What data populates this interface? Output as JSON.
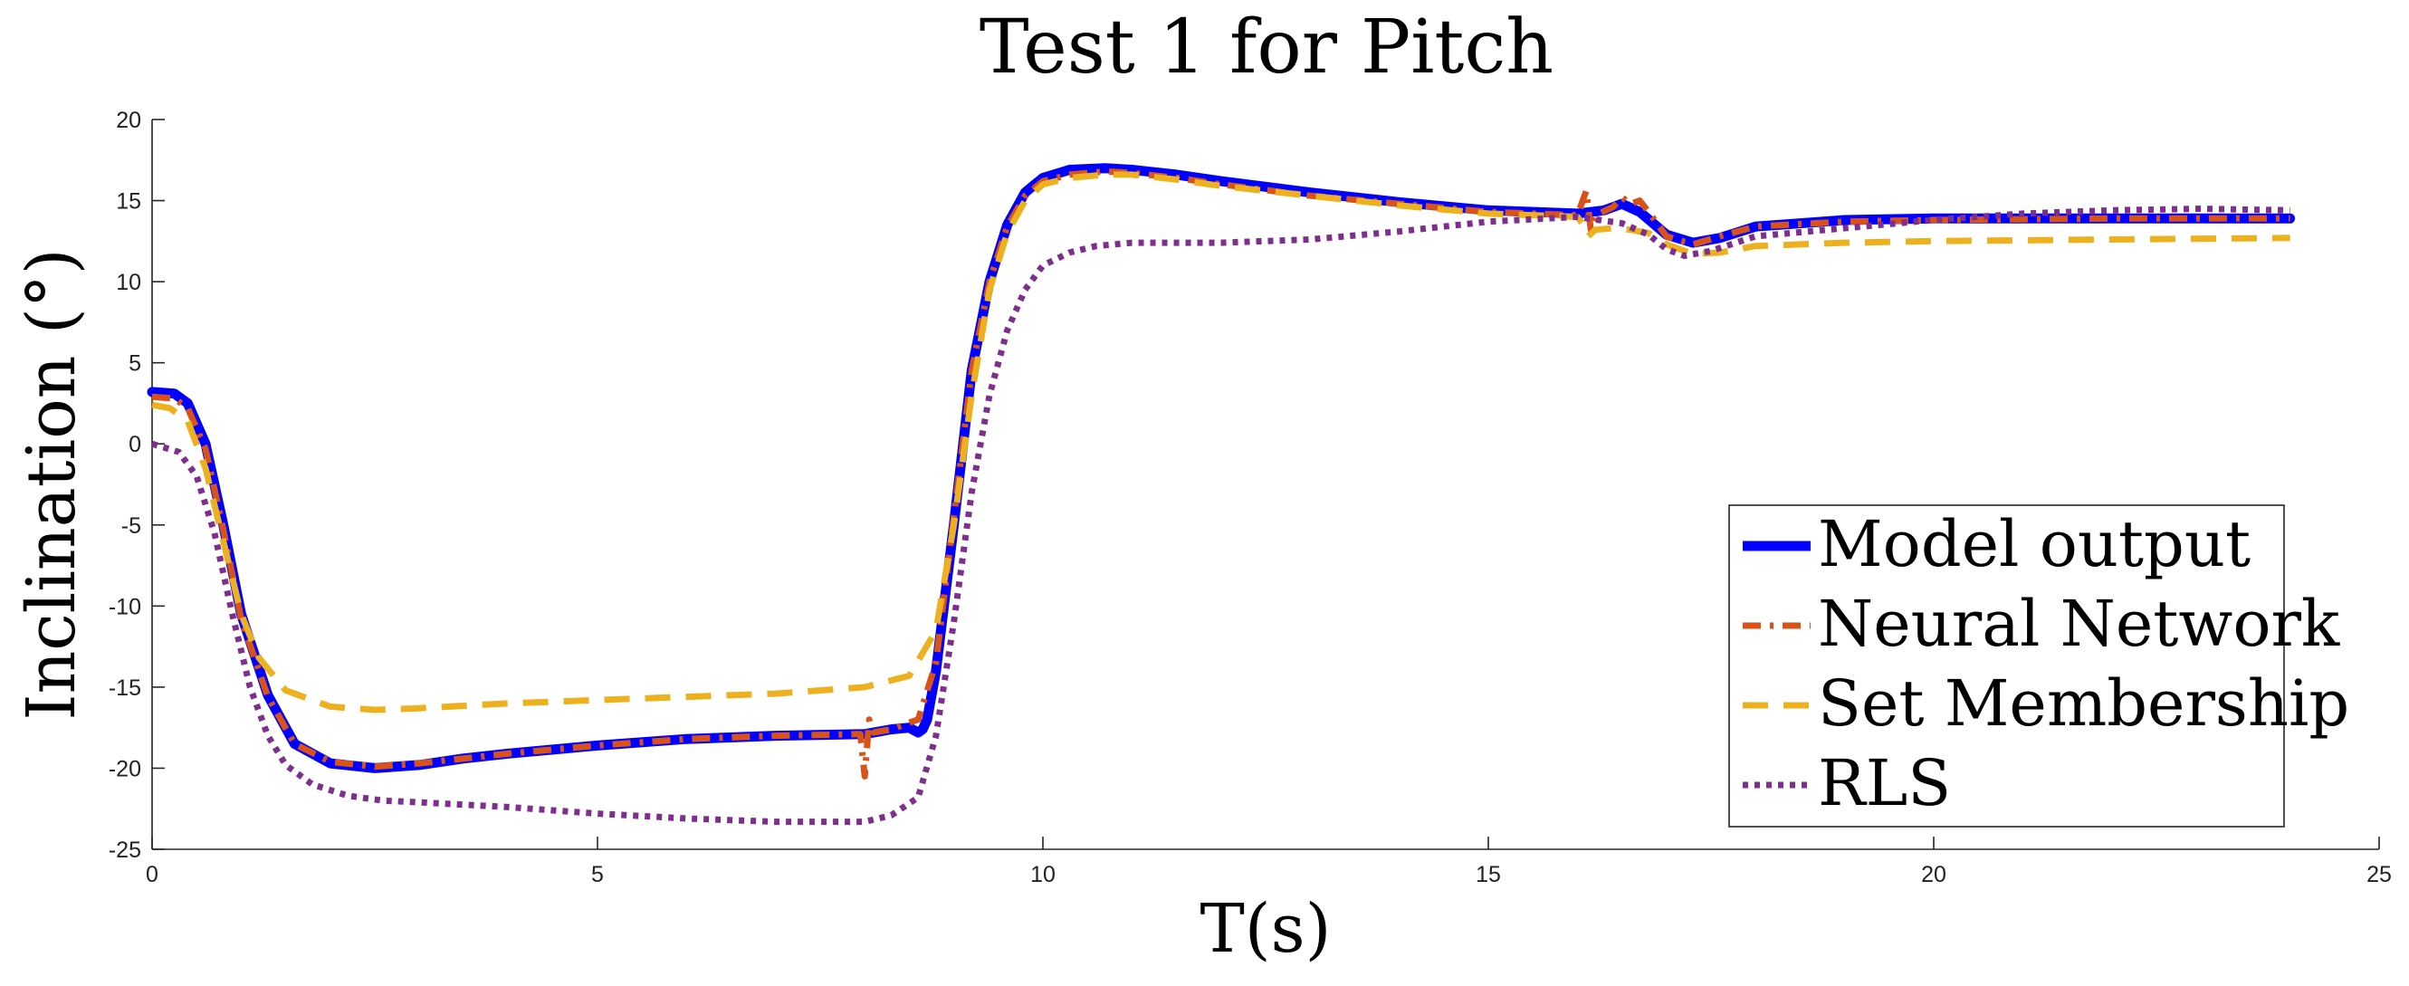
{
  "chart_data": {
    "type": "line",
    "title": "Test 1 for Pitch",
    "xlabel": "T(s)",
    "ylabel": "Inclination (°)",
    "xlim": [
      0,
      25
    ],
    "ylim": [
      -25,
      20
    ],
    "xticks": [
      0,
      5,
      10,
      15,
      20,
      25
    ],
    "yticks": [
      -25,
      -20,
      -15,
      -10,
      -5,
      0,
      5,
      10,
      15,
      20
    ],
    "legend_position": "bottom-right",
    "series": [
      {
        "name": "Model output",
        "color": "#0000ff",
        "style": "solid",
        "x": [
          0,
          0.25,
          0.4,
          0.6,
          0.8,
          1.0,
          1.3,
          1.6,
          2.0,
          2.5,
          3.0,
          3.5,
          4.0,
          5.0,
          6.0,
          7.0,
          8.0,
          8.3,
          8.5,
          8.6,
          8.65,
          8.7,
          8.8,
          9.0,
          9.2,
          9.4,
          9.6,
          9.8,
          10.0,
          10.3,
          10.7,
          11.0,
          11.5,
          12.0,
          13.0,
          14.0,
          15.0,
          16.0,
          16.3,
          16.5,
          16.7,
          17.0,
          17.3,
          17.6,
          18.0,
          19.0,
          20.0,
          22.0,
          24.0
        ],
        "y": [
          3.2,
          3.1,
          2.5,
          0,
          -5,
          -10.5,
          -15.5,
          -18.5,
          -19.7,
          -20.0,
          -19.8,
          -19.4,
          -19.1,
          -18.6,
          -18.2,
          -18.0,
          -17.9,
          -17.6,
          -17.5,
          -17.8,
          -17.6,
          -17.0,
          -14,
          -5,
          4.5,
          10,
          13.5,
          15.5,
          16.4,
          16.9,
          17.0,
          16.9,
          16.6,
          16.2,
          15.5,
          14.9,
          14.4,
          14.2,
          14.4,
          14.8,
          14.3,
          12.9,
          12.4,
          12.7,
          13.4,
          13.8,
          13.9,
          13.9,
          13.9
        ]
      },
      {
        "name": "Neural Network",
        "color": "#d95319",
        "style": "dashdot",
        "x": [
          0,
          0.25,
          0.4,
          0.6,
          0.8,
          1.0,
          1.3,
          1.6,
          2.0,
          2.5,
          3.0,
          3.5,
          4.0,
          5.0,
          6.0,
          7.0,
          7.95,
          8.0,
          8.05,
          8.1,
          8.3,
          8.6,
          8.8,
          9.0,
          9.2,
          9.4,
          9.6,
          9.8,
          10.0,
          10.3,
          10.7,
          11.0,
          11.5,
          12.0,
          13.0,
          14.0,
          15.0,
          16.0,
          16.1,
          16.15,
          16.2,
          16.4,
          16.5,
          16.6,
          16.7,
          16.8,
          17.0,
          17.3,
          17.6,
          18.0,
          19.0,
          20.0,
          22.0,
          24.0
        ],
        "y": [
          2.9,
          2.8,
          2.2,
          -0.3,
          -5.3,
          -10.8,
          -15.6,
          -18.5,
          -19.6,
          -19.9,
          -19.7,
          -19.4,
          -19.1,
          -18.6,
          -18.2,
          -18.0,
          -17.9,
          -20.5,
          -17.0,
          -17.8,
          -17.6,
          -17.0,
          -13.5,
          -4.5,
          4.5,
          10,
          13.4,
          15.3,
          16.2,
          16.6,
          16.8,
          16.7,
          16.4,
          16.0,
          15.3,
          14.8,
          14.3,
          14.1,
          15.6,
          13.2,
          14.1,
          14.6,
          15.2,
          14.8,
          15.0,
          14.3,
          12.8,
          12.3,
          12.8,
          13.4,
          13.7,
          13.8,
          13.9,
          13.9
        ]
      },
      {
        "name": "Set Membership",
        "color": "#edb120",
        "style": "dashed",
        "x": [
          0,
          0.2,
          0.4,
          0.6,
          0.8,
          1.0,
          1.2,
          1.5,
          2.0,
          2.5,
          3.0,
          4.0,
          5.0,
          6.0,
          7.0,
          8.0,
          8.5,
          8.8,
          9.0,
          9.2,
          9.4,
          9.6,
          9.8,
          10.0,
          10.3,
          10.7,
          11.0,
          11.5,
          12.0,
          13.0,
          14.0,
          15.0,
          16.0,
          16.08,
          16.12,
          16.2,
          16.4,
          16.6,
          16.8,
          17.0,
          17.3,
          17.6,
          18.0,
          19.0,
          20.0,
          22.0,
          24.0
        ],
        "y": [
          2.4,
          2.2,
          1.4,
          -1.5,
          -6,
          -10.5,
          -13.2,
          -15.2,
          -16.2,
          -16.4,
          -16.3,
          -16.0,
          -15.8,
          -15.6,
          -15.4,
          -15.0,
          -14.3,
          -11.5,
          -5,
          3,
          9.5,
          13,
          15,
          16,
          16.4,
          16.6,
          16.6,
          16.3,
          15.9,
          15.3,
          14.7,
          14.2,
          14.0,
          13.4,
          12.8,
          13.2,
          13.3,
          13.2,
          13.0,
          12.3,
          11.7,
          11.8,
          12.2,
          12.4,
          12.5,
          12.6,
          12.7
        ]
      },
      {
        "name": "RLS",
        "color": "#7e2f8e",
        "style": "dotted",
        "x": [
          0,
          0.3,
          0.5,
          0.7,
          0.9,
          1.1,
          1.3,
          1.5,
          1.8,
          2.2,
          2.6,
          3.0,
          4.0,
          5.0,
          6.0,
          7.0,
          8.0,
          8.3,
          8.6,
          8.8,
          9.0,
          9.2,
          9.4,
          9.6,
          9.8,
          10.0,
          10.3,
          10.6,
          11.0,
          12.0,
          13.0,
          14.0,
          15.0,
          16.0,
          16.5,
          16.8,
          17.0,
          17.2,
          17.5,
          18.0,
          19.0,
          20.0,
          21.0,
          22.0,
          23.0,
          24.0
        ],
        "y": [
          0,
          -0.5,
          -2,
          -5.5,
          -10.5,
          -15,
          -18,
          -19.8,
          -21,
          -21.7,
          -22.0,
          -22.1,
          -22.4,
          -22.8,
          -23.1,
          -23.3,
          -23.3,
          -22.9,
          -21.8,
          -18,
          -11,
          -3,
          3,
          7,
          9.5,
          11,
          11.8,
          12.2,
          12.4,
          12.4,
          12.6,
          13.1,
          13.7,
          14.0,
          13.6,
          12.9,
          12.0,
          11.6,
          11.9,
          12.8,
          13.3,
          13.8,
          14.2,
          14.4,
          14.5,
          14.4
        ]
      }
    ]
  }
}
